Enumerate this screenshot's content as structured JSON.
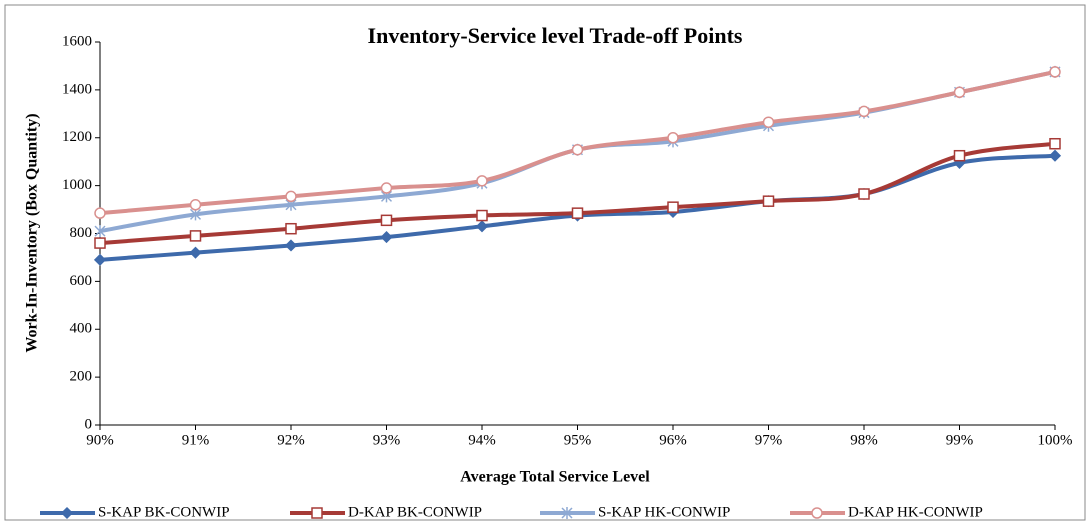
{
  "chart_data": {
    "type": "line",
    "title": "Inventory-Service level Trade-off Points",
    "x_label": "Average Total Service Level",
    "y_label": "Work-In-Inventory (Box Quantity)",
    "categories": [
      "90%",
      "91%",
      "92%",
      "93%",
      "94%",
      "95%",
      "96%",
      "97%",
      "98%",
      "99%",
      "100%"
    ],
    "series": [
      {
        "name": "S-KAP BK-CONWIP",
        "color": "#3e6aab",
        "marker": "diamond",
        "values": [
          690,
          720,
          750,
          785,
          830,
          875,
          890,
          935,
          965,
          1095,
          1125
        ]
      },
      {
        "name": "D-KAP BK-CONWIP",
        "color": "#a63a36",
        "marker": "square",
        "values": [
          760,
          790,
          820,
          855,
          875,
          885,
          910,
          935,
          965,
          1125,
          1175
        ]
      },
      {
        "name": "S-KAP HK-CONWIP",
        "color": "#8ea9d3",
        "marker": "star",
        "values": [
          810,
          880,
          920,
          955,
          1010,
          1150,
          1185,
          1250,
          1305,
          1390,
          1475
        ]
      },
      {
        "name": "D-KAP HK-CONWIP",
        "color": "#d9908e",
        "marker": "circle",
        "values": [
          885,
          920,
          955,
          990,
          1020,
          1150,
          1200,
          1265,
          1310,
          1390,
          1475
        ]
      }
    ],
    "ylim": [
      0,
      1600
    ],
    "yticks": [
      0,
      200,
      400,
      600,
      800,
      1000,
      1200,
      1400,
      1600
    ],
    "grid": false,
    "legend": "bottom",
    "smooth": true
  }
}
